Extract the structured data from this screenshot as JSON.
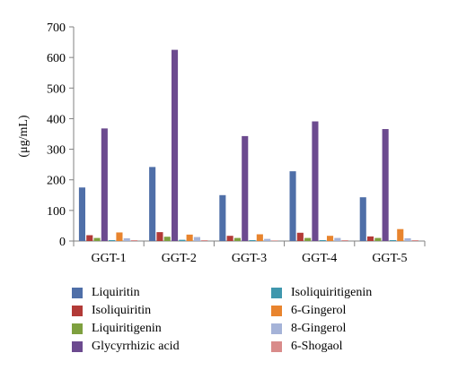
{
  "chart_data": {
    "type": "bar",
    "ylabel": "(μg/mL)",
    "ylim": [
      0,
      700
    ],
    "yticks": [
      0,
      100,
      200,
      300,
      400,
      500,
      600,
      700
    ],
    "grid": false,
    "legend_position": "bottom",
    "categories": [
      "GGT-1",
      "GGT-2",
      "GGT-3",
      "GGT-4",
      "GGT-5"
    ],
    "series": [
      {
        "name": "Liquiritin",
        "color": "#4f6fa8",
        "values": [
          175,
          242,
          150,
          228,
          143
        ]
      },
      {
        "name": "Isoliquiritin",
        "color": "#b23a37",
        "values": [
          19,
          29,
          17,
          27,
          15
        ]
      },
      {
        "name": "Liquiritigenin",
        "color": "#7ea03f",
        "values": [
          10,
          14,
          10,
          10,
          10
        ]
      },
      {
        "name": "Glycyrrhizic acid",
        "color": "#6c4a8f",
        "values": [
          368,
          625,
          343,
          391,
          366
        ]
      },
      {
        "name": "Isoliquiritigenin",
        "color": "#3f97ad",
        "values": [
          3,
          4,
          3,
          3,
          3
        ]
      },
      {
        "name": "6-Gingerol",
        "color": "#e8842e",
        "values": [
          28,
          21,
          22,
          17,
          39
        ]
      },
      {
        "name": "8-Gingerol",
        "color": "#a5b3d8",
        "values": [
          9,
          13,
          7,
          10,
          9
        ]
      },
      {
        "name": "6-Shogaol",
        "color": "#d98b8a",
        "values": [
          3,
          3,
          2,
          3,
          3
        ]
      }
    ]
  }
}
